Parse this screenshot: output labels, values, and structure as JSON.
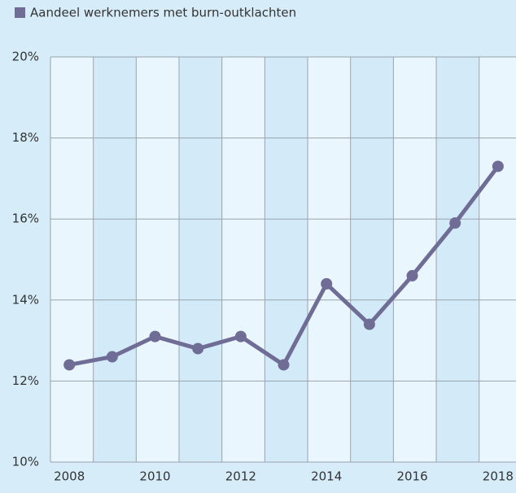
{
  "chart_data": {
    "type": "line",
    "x": [
      2008,
      2009,
      2010,
      2011,
      2012,
      2013,
      2014,
      2015,
      2016,
      2017,
      2018
    ],
    "series": [
      {
        "name": "Aandeel werknemers met burn-outklachten",
        "color": "#6f6c96",
        "values": [
          12.4,
          12.6,
          13.1,
          12.8,
          13.1,
          12.4,
          14.4,
          13.4,
          14.6,
          15.9,
          17.3
        ]
      }
    ],
    "xlim": [
      2007.56,
      2018.42
    ],
    "xticks": [
      2008,
      2010,
      2012,
      2014,
      2016,
      2018
    ],
    "ylim": [
      10,
      20
    ],
    "yticks": [
      {
        "value": 10,
        "label": "10%"
      },
      {
        "value": 12,
        "label": "12%"
      },
      {
        "value": 14,
        "label": "14%"
      },
      {
        "value": 16,
        "label": "16%"
      },
      {
        "value": 18,
        "label": "18%"
      },
      {
        "value": 20,
        "label": "20%"
      }
    ],
    "grid": true,
    "legend": "top-left"
  }
}
